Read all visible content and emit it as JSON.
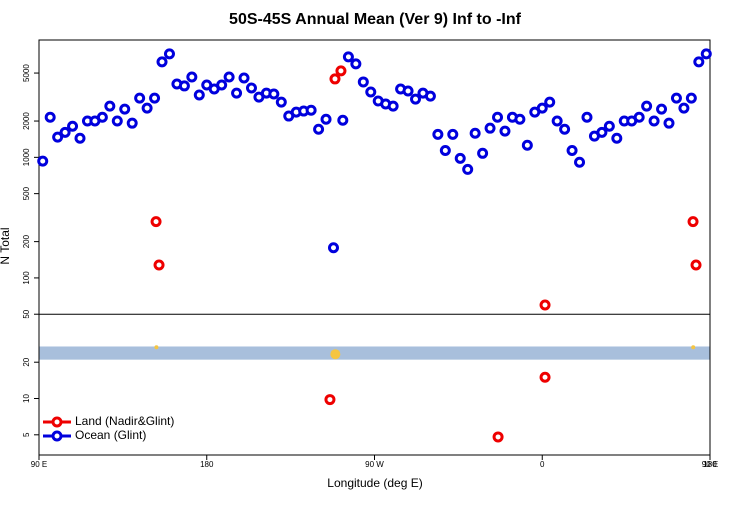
{
  "chart_data": {
    "type": "scatter",
    "title": "50S-45S Annual Mean (Ver 9)   Inf to -Inf",
    "xlabel": "Longitude (deg E)",
    "ylabel": "N Total",
    "xlim": [
      90,
      450
    ],
    "ylim": [
      3.4,
      9400
    ],
    "log_y": true,
    "xticks": [
      {
        "value": 90,
        "label": "90 E"
      },
      180,
      {
        "value": 270,
        "label": "90 W"
      },
      {
        "value": 360,
        "label": "0"
      },
      {
        "value": 450,
        "label": "90 E"
      },
      {
        "value": 450,
        "label": "180"
      }
    ],
    "yticks": [
      5,
      10,
      20,
      50,
      100,
      200,
      500,
      1000,
      2000,
      5000
    ],
    "hline": 50,
    "band": [
      21,
      27
    ],
    "band_color": "#a8bfdc",
    "legend": "lower left",
    "series": [
      {
        "name": "Land (Nadir&Glint)",
        "color": "#ee0000",
        "x": [
          152.8,
          154.4,
          248.8,
          252,
          246.1,
          336.3,
          361.5,
          361.5,
          440.9,
          442.5
        ],
        "values": [
          293,
          128,
          4470,
          5210,
          9.8,
          4.8,
          59.6,
          15,
          293,
          128
        ]
      },
      {
        "name": "Ocean (Glint)",
        "color": "#0000dd",
        "x": [
          92,
          96,
          100,
          104,
          108,
          112,
          116,
          120,
          124,
          128,
          132,
          136,
          140,
          144,
          148,
          152,
          156,
          160,
          164,
          168,
          172,
          176,
          180,
          184,
          188,
          192,
          196,
          200,
          204,
          208,
          212,
          216,
          220,
          224,
          228,
          232,
          236,
          240,
          244,
          248,
          253,
          256,
          260,
          264,
          268,
          272,
          276,
          280,
          284,
          288,
          292,
          296,
          300,
          304,
          308,
          312,
          316,
          320,
          324,
          328,
          332,
          336,
          340,
          344,
          348,
          352,
          356,
          360,
          364,
          368,
          372,
          376,
          380,
          384,
          388,
          392,
          396,
          400,
          404,
          408,
          412,
          416,
          420,
          424,
          428,
          432,
          436,
          440,
          444,
          448
        ],
        "values": [
          930,
          2150,
          1470,
          1610,
          1810,
          1440,
          2000,
          2000,
          2150,
          2660,
          2000,
          2510,
          1920,
          3100,
          2560,
          3100,
          6190,
          7210,
          4060,
          3910,
          4640,
          3290,
          3980,
          3690,
          3980,
          4640,
          3410,
          4550,
          3760,
          3160,
          3410,
          3350,
          2870,
          2200,
          2370,
          2420,
          2460,
          1710,
          2070,
          178,
          2030,
          6810,
          5960,
          4220,
          3480,
          2930,
          2770,
          2660,
          3690,
          3550,
          3040,
          3410,
          3220,
          1550,
          1140,
          1550,
          980,
          794,
          1585,
          1080,
          1745,
          2150,
          1650,
          2150,
          2070,
          1260,
          2370,
          2560,
          2870,
          2000,
          1710,
          1140,
          910,
          2150,
          1500,
          1610,
          1810,
          1440,
          2000,
          2000,
          2150,
          2660,
          2000,
          2510,
          1920,
          3100,
          2560,
          3100,
          6190,
          7210
        ]
      },
      {
        "color": "#f5c542",
        "x": [
          153,
          249,
          441
        ],
        "values": [
          26.6,
          23.3,
          26.6
        ]
      }
    ]
  }
}
